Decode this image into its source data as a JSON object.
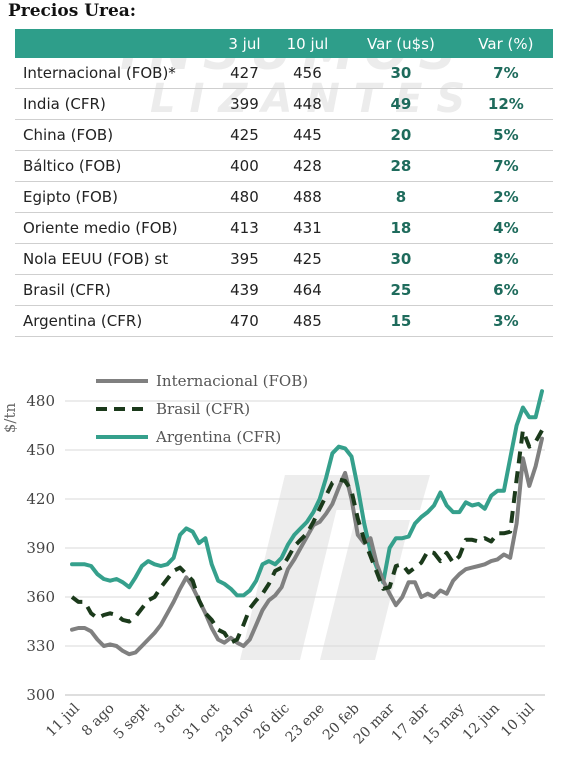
{
  "title": "Precios Urea:",
  "table": {
    "headers": [
      "",
      "3 jul",
      "10 jul",
      "Var (u$s)",
      "Var (%)"
    ],
    "rows": [
      {
        "name": "Internacional (FOB)*",
        "jul3": "427",
        "jul10": "456",
        "var_usd": "30",
        "var_pct": "7%"
      },
      {
        "name": "India (CFR)",
        "jul3": "399",
        "jul10": "448",
        "var_usd": "49",
        "var_pct": "12%"
      },
      {
        "name": "China (FOB)",
        "jul3": "425",
        "jul10": "445",
        "var_usd": "20",
        "var_pct": "5%"
      },
      {
        "name": "Báltico (FOB)",
        "jul3": "400",
        "jul10": "428",
        "var_usd": "28",
        "var_pct": "7%"
      },
      {
        "name": "Egipto (FOB)",
        "jul3": "480",
        "jul10": "488",
        "var_usd": "8",
        "var_pct": "2%"
      },
      {
        "name": "Oriente medio (FOB)",
        "jul3": "413",
        "jul10": "431",
        "var_usd": "18",
        "var_pct": "4%"
      },
      {
        "name": "Nola EEUU (FOB) st",
        "jul3": "395",
        "jul10": "425",
        "var_usd": "30",
        "var_pct": "8%"
      },
      {
        "name": "Brasil (CFR)",
        "jul3": "439",
        "jul10": "464",
        "var_usd": "25",
        "var_pct": "6%"
      },
      {
        "name": "Argentina (CFR)",
        "jul3": "470",
        "jul10": "485",
        "var_usd": "15",
        "var_pct": "3%"
      }
    ]
  },
  "chart_data": {
    "type": "line",
    "ylabel": "$/tn",
    "ylim": [
      300,
      490
    ],
    "yticks": [
      300,
      330,
      360,
      390,
      420,
      450,
      480
    ],
    "x_tick_labels": [
      "11 jul",
      "8 ago",
      "5 sept",
      "3 oct",
      "31 oct",
      "28 nov",
      "26 dic",
      "23 ene",
      "20 feb",
      "20 mar",
      "17 abr",
      "15 may",
      "12 jun",
      "10 jul"
    ],
    "legend_position": "top-left",
    "series": [
      {
        "name": "Internacional (FOB)",
        "color": "#808080",
        "style": "solid",
        "values": [
          340,
          341,
          341,
          339,
          334,
          330,
          331,
          330,
          327,
          325,
          326,
          330,
          334,
          338,
          343,
          350,
          357,
          365,
          372,
          366,
          358,
          350,
          341,
          334,
          332,
          335,
          332,
          330,
          334,
          343,
          352,
          358,
          361,
          366,
          377,
          383,
          390,
          397,
          404,
          406,
          411,
          417,
          427,
          436,
          420,
          398,
          393,
          396,
          380,
          370,
          362,
          355,
          360,
          369,
          369,
          360,
          362,
          360,
          364,
          362,
          370,
          374,
          377,
          378,
          379,
          380,
          382,
          383,
          386,
          384,
          405,
          445,
          428,
          440,
          457
        ]
      },
      {
        "name": "Brasil (CFR)",
        "color": "#1b3a1b",
        "style": "dashed",
        "values": [
          360,
          357,
          357,
          350,
          347,
          349,
          350,
          349,
          346,
          345,
          348,
          353,
          358,
          360,
          366,
          371,
          376,
          378,
          374,
          370,
          358,
          350,
          346,
          340,
          338,
          332,
          334,
          343,
          353,
          358,
          362,
          368,
          376,
          378,
          384,
          391,
          395,
          399,
          406,
          414,
          422,
          430,
          432,
          431,
          425,
          408,
          395,
          385,
          375,
          365,
          366,
          379,
          380,
          375,
          378,
          381,
          388,
          387,
          382,
          387,
          381,
          385,
          395,
          395,
          394,
          396,
          394,
          399,
          399,
          400,
          432,
          462,
          452,
          455,
          462
        ]
      },
      {
        "name": "Argentina (CFR)",
        "color": "#35a08c",
        "style": "solid",
        "values": [
          380,
          380,
          380,
          379,
          374,
          371,
          370,
          371,
          369,
          366,
          372,
          379,
          382,
          380,
          379,
          380,
          384,
          398,
          402,
          400,
          393,
          396,
          380,
          370,
          368,
          365,
          361,
          361,
          364,
          370,
          380,
          382,
          380,
          384,
          392,
          398,
          402,
          406,
          412,
          420,
          433,
          448,
          452,
          451,
          446,
          427,
          405,
          388,
          378,
          369,
          390,
          396,
          396,
          397,
          405,
          409,
          412,
          416,
          424,
          416,
          412,
          412,
          418,
          416,
          417,
          414,
          422,
          425,
          425,
          445,
          465,
          476,
          470,
          470,
          486
        ]
      }
    ]
  }
}
